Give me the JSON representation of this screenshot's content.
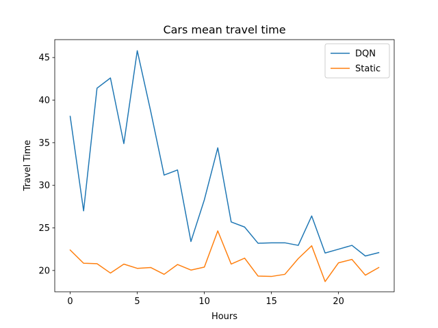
{
  "chart_data": {
    "type": "line",
    "title": "Cars mean travel time",
    "xlabel": "Hours",
    "ylabel": "Travel Time",
    "x": [
      0,
      1,
      2,
      3,
      4,
      5,
      6,
      7,
      8,
      9,
      10,
      11,
      12,
      13,
      14,
      15,
      16,
      17,
      18,
      19,
      20,
      21,
      22,
      23
    ],
    "xlim": [
      -1.15,
      24.15
    ],
    "ylim": [
      17.5,
      47.1
    ],
    "xticks": [
      0,
      5,
      10,
      15,
      20
    ],
    "yticks": [
      20,
      25,
      30,
      35,
      40,
      45
    ],
    "grid": false,
    "legend_position": "top-right",
    "series": [
      {
        "name": "DQN",
        "color": "#1f77b4",
        "values": [
          38.1,
          27.0,
          41.4,
          42.6,
          34.9,
          45.8,
          38.7,
          31.2,
          31.8,
          23.4,
          28.3,
          34.4,
          25.7,
          25.1,
          23.2,
          23.25,
          23.25,
          22.95,
          26.4,
          22.05,
          22.5,
          22.95,
          21.7,
          22.1
        ]
      },
      {
        "name": "Static",
        "color": "#ff7f0e",
        "values": [
          22.4,
          20.85,
          20.8,
          19.7,
          20.75,
          20.25,
          20.35,
          19.55,
          20.7,
          20.05,
          20.4,
          24.65,
          20.75,
          21.45,
          19.35,
          19.3,
          19.55,
          21.4,
          22.9,
          18.7,
          20.9,
          21.3,
          19.45,
          20.35
        ]
      }
    ]
  }
}
